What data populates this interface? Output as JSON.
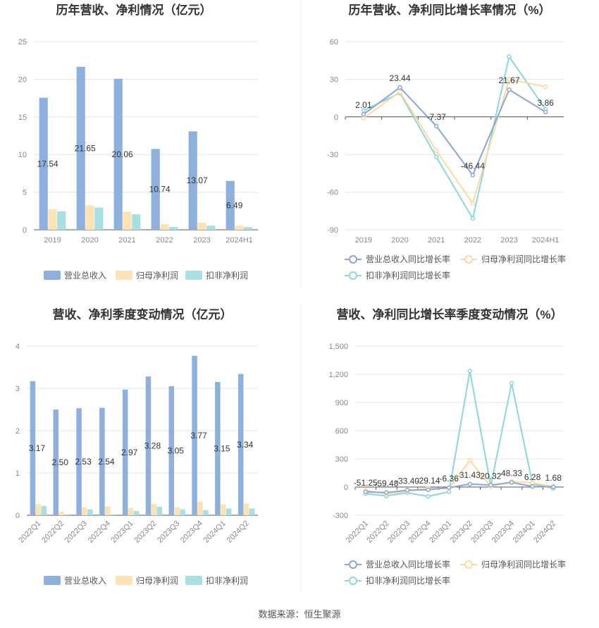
{
  "footer": {
    "source": "数据来源：恒生聚源"
  },
  "colors": {
    "revenue": "#8eb0dc",
    "net_profit": "#fde3b4",
    "deducted_profit": "#8ad4d9"
  },
  "chart_data": [
    {
      "id": "annual_values",
      "type": "bar",
      "title": "历年营收、净利情况（亿元）",
      "categories": [
        "2019",
        "2020",
        "2021",
        "2022",
        "2023",
        "2024H1"
      ],
      "ylim": [
        0,
        25
      ],
      "yticks": [
        "0",
        "5",
        "10",
        "15",
        "20",
        "25"
      ],
      "ytick_values": [
        0,
        5,
        10,
        15,
        20,
        25
      ],
      "legend_placement": "bottom",
      "series": [
        {
          "name": "营业总收入",
          "color": "#8eb0dc",
          "values": [
            17.54,
            21.65,
            20.06,
            10.74,
            13.07,
            6.49
          ],
          "labels": [
            "17.54",
            "21.65",
            "20.06",
            "10.74",
            "13.07",
            "6.49"
          ]
        },
        {
          "name": "归母净利润",
          "color": "#fde3b4",
          "values": [
            2.75,
            3.25,
            2.4,
            0.75,
            0.95,
            0.55
          ]
        },
        {
          "name": "扣非净利润",
          "color": "#a8dfe3",
          "values": [
            2.45,
            2.95,
            2.05,
            0.38,
            0.55,
            0.35
          ]
        }
      ]
    },
    {
      "id": "annual_growth",
      "type": "line",
      "title": "历年营收、净利同比增长率情况（%）",
      "categories": [
        "2019",
        "2020",
        "2021",
        "2022",
        "2023",
        "2024H1"
      ],
      "ylim": [
        -90,
        60
      ],
      "yticks": [
        "-90",
        "-60",
        "-30",
        "0",
        "30",
        "60"
      ],
      "ytick_values": [
        -90,
        -60,
        -30,
        0,
        30,
        60
      ],
      "legend_placement": "bottom",
      "series": [
        {
          "name": "营业总收入同比增长率",
          "color": "#8ca6d8",
          "values": [
            2.01,
            23.44,
            -7.37,
            -46.44,
            21.67,
            3.86
          ],
          "labels": [
            "2.01",
            "23.44",
            "-7.37",
            "-46.44",
            "21.67",
            "3.86"
          ]
        },
        {
          "name": "归母净利润同比增长率",
          "color": "#fdd9a0",
          "values": [
            -1,
            20,
            -27,
            -69,
            30,
            24
          ]
        },
        {
          "name": "扣非净利润同比增长率",
          "color": "#88d8dc",
          "values": [
            5,
            19,
            -32,
            -81,
            48,
            6
          ]
        }
      ]
    },
    {
      "id": "quarterly_values",
      "type": "bar",
      "title": "营收、净利季度变动情况（亿元）",
      "categories": [
        "2022Q1",
        "2022Q2",
        "2022Q3",
        "2022Q4",
        "2023Q1",
        "2023Q2",
        "2023Q3",
        "2023Q4",
        "2024Q1",
        "2024Q2"
      ],
      "ylim": [
        0,
        4
      ],
      "yticks": [
        "0",
        "1",
        "2",
        "3",
        "4"
      ],
      "ytick_values": [
        0,
        1,
        2,
        3,
        4
      ],
      "legend_placement": "bottom",
      "series": [
        {
          "name": "营业总收入",
          "color": "#8eb0dc",
          "values": [
            3.17,
            2.5,
            2.53,
            2.54,
            2.97,
            3.28,
            3.05,
            3.77,
            3.15,
            3.34
          ],
          "labels": [
            "3.17",
            "2.50",
            "2.53",
            "2.54",
            "2.97",
            "3.28",
            "3.05",
            "3.77",
            "3.15",
            "3.34"
          ]
        },
        {
          "name": "归母净利润",
          "color": "#fde3b4",
          "values": [
            0.26,
            0.08,
            0.19,
            0.21,
            0.17,
            0.27,
            0.19,
            0.32,
            0.26,
            0.28
          ]
        },
        {
          "name": "扣非净利润",
          "color": "#a8dfe3",
          "values": [
            0.22,
            0.02,
            0.14,
            0.02,
            0.1,
            0.2,
            0.14,
            0.12,
            0.16,
            0.16
          ]
        }
      ]
    },
    {
      "id": "quarterly_growth",
      "type": "line",
      "title": "营收、净利同比增长率季度变动情况（%）",
      "categories": [
        "2022Q1",
        "2022Q2",
        "2022Q3",
        "2022Q4",
        "2023Q1",
        "2023Q2",
        "2023Q3",
        "2023Q4",
        "2024Q1",
        "2024Q2"
      ],
      "ylim": [
        -300,
        1500
      ],
      "yticks": [
        "-300",
        "0",
        "300",
        "600",
        "900",
        "1,200",
        "1,500"
      ],
      "ytick_values": [
        -300,
        0,
        300,
        600,
        900,
        1200,
        1500
      ],
      "legend_placement": "bottom",
      "series": [
        {
          "name": "营业总收入同比增长率",
          "color": "#8ca6d8",
          "values": [
            -51.25,
            -59.48,
            -33.4,
            -29.14,
            -6.36,
            31.43,
            20.32,
            48.33,
            6.28,
            1.68
          ],
          "labels": [
            "-51.25",
            "-59.48",
            "-33.40",
            "-29.14",
            "-6.36",
            "31.43",
            "20.32",
            "48.33",
            "6.28",
            "1.68"
          ]
        },
        {
          "name": "归母净利润同比增长率",
          "color": "#fdd9a0",
          "values": [
            -35,
            -75,
            -45,
            -10,
            -20,
            285,
            5,
            60,
            45,
            5
          ]
        },
        {
          "name": "扣非净利润同比增长率",
          "color": "#88d8dc",
          "values": [
            -70,
            -95,
            -60,
            -100,
            -50,
            1235,
            10,
            1105,
            35,
            -15
          ]
        }
      ]
    }
  ]
}
